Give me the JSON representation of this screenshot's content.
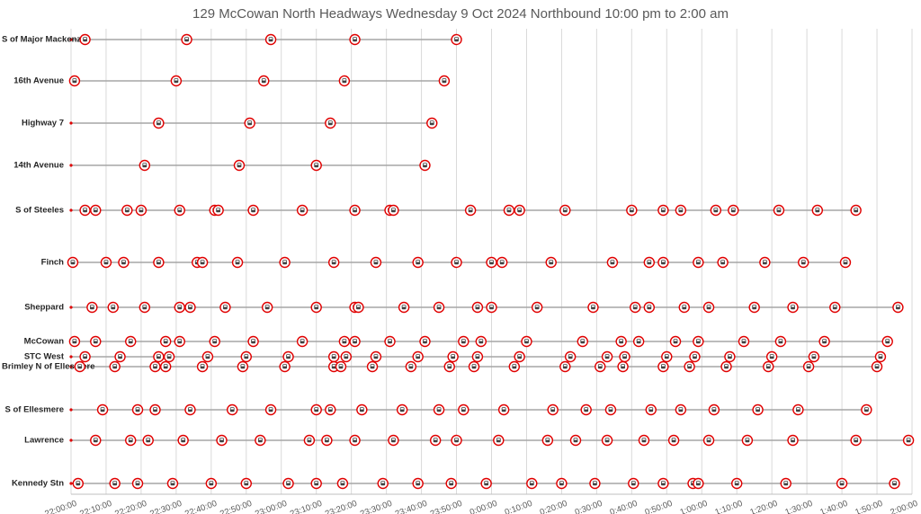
{
  "chart_data": {
    "type": "timeline",
    "title": "129 McCowan North Headways Wednesday 9 Oct 2024 Northbound 10:00 pm to 2:00 am",
    "xlim": [
      0,
      240
    ],
    "xticks": [
      {
        "value": 0,
        "label": "22:00:00"
      },
      {
        "value": 10,
        "label": "22:10:00"
      },
      {
        "value": 20,
        "label": "22:20:00"
      },
      {
        "value": 30,
        "label": "22:30:00"
      },
      {
        "value": 40,
        "label": "22:40:00"
      },
      {
        "value": 50,
        "label": "22:50:00"
      },
      {
        "value": 60,
        "label": "23:00:00"
      },
      {
        "value": 70,
        "label": "23:10:00"
      },
      {
        "value": 80,
        "label": "23:20:00"
      },
      {
        "value": 90,
        "label": "23:30:00"
      },
      {
        "value": 100,
        "label": "23:40:00"
      },
      {
        "value": 110,
        "label": "23:50:00"
      },
      {
        "value": 120,
        "label": "0:00:00"
      },
      {
        "value": 130,
        "label": "0:10:00"
      },
      {
        "value": 140,
        "label": "0:20:00"
      },
      {
        "value": 150,
        "label": "0:30:00"
      },
      {
        "value": 160,
        "label": "0:40:00"
      },
      {
        "value": 170,
        "label": "0:50:00"
      },
      {
        "value": 180,
        "label": "1:00:00"
      },
      {
        "value": 190,
        "label": "1:10:00"
      },
      {
        "value": 200,
        "label": "1:20:00"
      },
      {
        "value": 210,
        "label": "1:30:00"
      },
      {
        "value": 220,
        "label": "1:40:00"
      },
      {
        "value": 230,
        "label": "1:50:00"
      },
      {
        "value": 240,
        "label": "2:00:00"
      }
    ],
    "grid": true,
    "color": "#e00000",
    "stops": [
      {
        "name": "S of Major Mackenzie",
        "times": [
          4,
          33,
          57,
          81,
          110
        ]
      },
      {
        "name": "16th Avenue",
        "times": [
          1,
          30,
          55,
          78,
          106.5
        ]
      },
      {
        "name": "Highway 7",
        "times": [
          25,
          51,
          74,
          103
        ]
      },
      {
        "name": "14th Avenue",
        "times": [
          21,
          48,
          70,
          101
        ]
      },
      {
        "name": "S of Steeles",
        "times": [
          4,
          7,
          16,
          20,
          31,
          41,
          42,
          52,
          66,
          81,
          91,
          92,
          114,
          125,
          128,
          141,
          160,
          169,
          174,
          184,
          189,
          202,
          213,
          224
        ]
      },
      {
        "name": "Finch",
        "times": [
          0.5,
          10,
          15,
          25,
          36,
          37.5,
          47.5,
          61,
          75,
          87,
          99,
          110,
          120,
          123,
          137,
          154.5,
          165,
          169,
          179,
          186,
          198,
          209,
          221
        ]
      },
      {
        "name": "Sheppard",
        "times": [
          6,
          12,
          21,
          31,
          34,
          44,
          56,
          70,
          81,
          82,
          95,
          105,
          116,
          120,
          133,
          149,
          161,
          165,
          175,
          182,
          195,
          206,
          218,
          236
        ]
      },
      {
        "name": "McCowan",
        "times": [
          1,
          7,
          17,
          27,
          31,
          41,
          52,
          66,
          78,
          81,
          91,
          101,
          112,
          117,
          130,
          146,
          157,
          162,
          172.5,
          179,
          192,
          202.5,
          215,
          233
        ]
      },
      {
        "name": "STC West",
        "times": [
          4,
          14,
          25,
          28,
          39,
          50,
          62,
          75,
          78.5,
          87,
          99,
          109,
          116,
          128,
          142.5,
          153,
          158,
          170,
          178,
          188,
          200,
          212,
          231
        ]
      },
      {
        "name": "Brimley N of Ellesmere",
        "times": [
          2.5,
          12.5,
          24,
          27,
          37.5,
          49,
          61,
          75,
          77,
          86,
          97,
          108,
          115,
          126.5,
          141,
          151,
          157.5,
          169,
          176.5,
          187,
          199,
          210.5,
          230
        ]
      },
      {
        "name": "S of Ellesmere",
        "times": [
          9,
          19,
          24,
          34,
          46,
          57,
          70,
          74,
          83,
          94.5,
          105,
          112,
          123.5,
          137.5,
          147,
          154,
          165.5,
          174,
          183.5,
          196,
          207.5,
          227
        ]
      },
      {
        "name": "Lawrence",
        "times": [
          7,
          17,
          22,
          32,
          43,
          54,
          68,
          73,
          81,
          92,
          104,
          110,
          122,
          136,
          144,
          153,
          163.5,
          172,
          182,
          193,
          206,
          224,
          239
        ]
      },
      {
        "name": "Kennedy Stn",
        "times": [
          2,
          12.5,
          19,
          29,
          40,
          50,
          62,
          70,
          77.5,
          89,
          99,
          108.5,
          118.5,
          131.5,
          140,
          149.5,
          160.5,
          169,
          177.5,
          179,
          190,
          204,
          220,
          235
        ]
      }
    ]
  }
}
